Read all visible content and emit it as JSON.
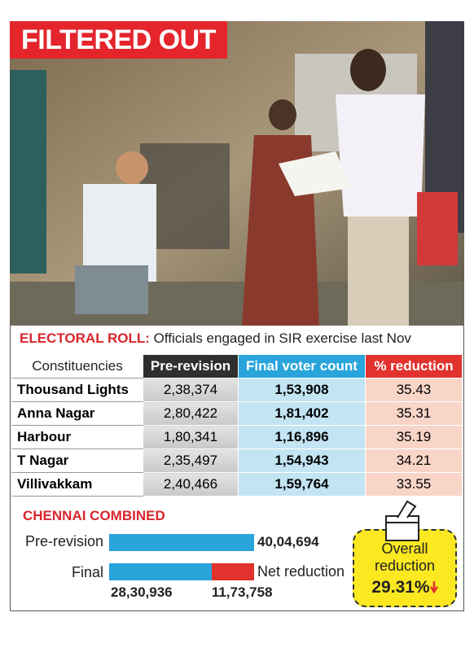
{
  "header": {
    "title": "FILTERED OUT"
  },
  "caption": {
    "label": "ELECTORAL ROLL:",
    "text": "Officials engaged in SIR exercise last Nov"
  },
  "table": {
    "columns": [
      "Constituencies",
      "Pre-revision",
      "Final voter count",
      "% reduction"
    ],
    "rows": [
      [
        "Thousand Lights",
        "2,38,374",
        "1,53,908",
        "35.43"
      ],
      [
        "Anna Nagar",
        "2,80,422",
        "1,81,402",
        "35.31"
      ],
      [
        "Harbour",
        "1,80,341",
        "1,16,896",
        "35.19"
      ],
      [
        "T Nagar",
        "2,35,497",
        "1,54,943",
        "34.21"
      ],
      [
        "Villivakkam",
        "2,40,466",
        "1,59,764",
        "33.55"
      ]
    ]
  },
  "combined": {
    "title": "CHENNAI COMBINED",
    "pre_revision": {
      "label": "Pre-revision",
      "value": 4004694,
      "value_label": "40,04,694",
      "color": "#29a5dc"
    },
    "final": {
      "label": "Final",
      "value": 2830936,
      "value_label": "28,30,936",
      "color": "#29a5dc"
    },
    "net_reduction": {
      "label": "Net reduction",
      "value": 1173758,
      "value_label": "11,73,758",
      "color": "#e1322e"
    },
    "overall": {
      "label": "Overall reduction",
      "value": "29.31%"
    }
  }
}
